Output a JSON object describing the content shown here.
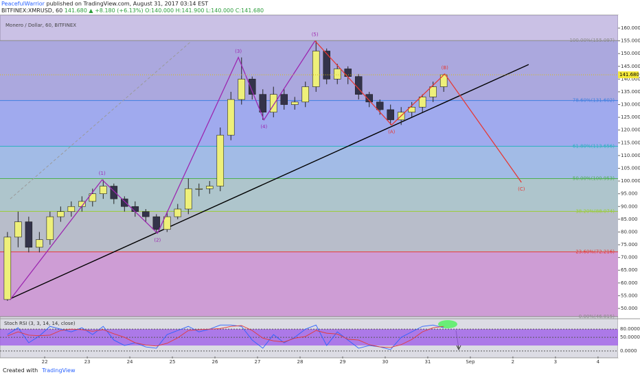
{
  "header": {
    "author": "PeacefulWarrior",
    "published": "published on TradingView.com, August 31, 2017 03:14 EST",
    "quote": [
      "BITFINEX:XMRUSD, 60",
      "141.680",
      "▲ +8.180 (+6.13%)",
      "O:140.000",
      "H:141.900",
      "L:140.000",
      "C:141.680"
    ]
  },
  "footer": {
    "created": "Created with",
    "brand": "TradingView"
  },
  "chart_data": {
    "type": "candlestick",
    "title": "Monero / Dollar, 60, BITFINEX",
    "up_color": "#eef07a",
    "down_color": "#33334a",
    "x": [
      21.125,
      21.375,
      21.625,
      21.875,
      22.125,
      22.375,
      22.625,
      22.875,
      23.125,
      23.375,
      23.625,
      23.875,
      24.125,
      24.375,
      24.625,
      24.875,
      25.125,
      25.375,
      25.625,
      25.875,
      26.125,
      26.375,
      26.625,
      26.875,
      27.125,
      27.375,
      27.625,
      27.875,
      28.125,
      28.375,
      28.625,
      28.875,
      29.125,
      29.375,
      29.625,
      29.875,
      30.125,
      30.375,
      30.625,
      30.875,
      31.125,
      31.375
    ],
    "open": [
      53.5,
      78,
      84,
      74,
      77,
      86,
      88,
      90,
      92,
      95,
      98,
      93,
      90,
      88,
      86,
      81,
      86,
      89,
      97,
      97,
      98,
      118,
      132,
      140,
      134,
      127,
      134,
      130,
      131,
      137,
      151,
      140,
      144,
      141,
      134,
      131,
      128,
      124,
      127,
      129,
      133,
      137
    ],
    "high": [
      80,
      88,
      86,
      80,
      88,
      90,
      92,
      94,
      97,
      100.5,
      99,
      94,
      92,
      89,
      87,
      88,
      91,
      101,
      99,
      100,
      121,
      135,
      148.5,
      141,
      136,
      137,
      136,
      133,
      139,
      155,
      152,
      146,
      145,
      142,
      135,
      132,
      130,
      129,
      131,
      134,
      139,
      142
    ],
    "low": [
      53,
      74,
      72,
      72,
      75,
      84,
      86,
      88,
      90,
      93,
      91,
      88,
      86,
      84,
      79.5,
      80,
      85,
      87,
      94,
      95,
      96,
      116,
      130,
      132,
      124,
      125,
      128,
      128,
      129,
      135,
      138,
      138,
      138,
      132,
      129,
      126,
      122,
      122,
      125,
      127,
      131,
      135
    ],
    "close": [
      78,
      84,
      74,
      77,
      86,
      88,
      90,
      92,
      95,
      98,
      93,
      90,
      88,
      86,
      81,
      86,
      89,
      97,
      97,
      98,
      118,
      132,
      140,
      134,
      127,
      134,
      130,
      131,
      137,
      151,
      140,
      144,
      141,
      134,
      131,
      128,
      124,
      127,
      129,
      133,
      137,
      141.68
    ],
    "xlim": [
      20.95,
      35.47
    ],
    "xticks": [
      22,
      23,
      24,
      25,
      26,
      27,
      28,
      29,
      30,
      31,
      {
        "value": 32,
        "label": "Sep"
      },
      {
        "value": 33,
        "label": "2"
      },
      {
        "value": 34,
        "label": "3"
      },
      {
        "value": 35,
        "label": "4"
      }
    ],
    "ylim": [
      46.77,
      162.96
    ],
    "yticks": [
      {
        "value": 160,
        "label": "160.000"
      },
      {
        "value": 155,
        "label": "155.000"
      },
      {
        "value": 150,
        "label": "150.000"
      },
      {
        "value": 145,
        "label": "145.000"
      },
      {
        "value": 140,
        "label": "140.000"
      },
      {
        "value": 135,
        "label": "135.000"
      },
      {
        "value": 130,
        "label": "130.000"
      },
      {
        "value": 125,
        "label": "125.000"
      },
      {
        "value": 120,
        "label": "120.000"
      },
      {
        "value": 115,
        "label": "115.000"
      },
      {
        "value": 110,
        "label": "110.000"
      },
      {
        "value": 105,
        "label": "105.000"
      },
      {
        "value": 100,
        "label": "100.000"
      },
      {
        "value": 95,
        "label": "95.000"
      },
      {
        "value": 90,
        "label": "90.000"
      },
      {
        "value": 85,
        "label": "85.000"
      },
      {
        "value": 80,
        "label": "80.000"
      },
      {
        "value": 75,
        "label": "75.000"
      },
      {
        "value": 70,
        "label": "70.000"
      },
      {
        "value": 65,
        "label": "65.000"
      },
      {
        "value": 60,
        "label": "60.000"
      },
      {
        "value": 55,
        "label": "55.000"
      },
      {
        "value": 50,
        "label": "50.000"
      }
    ],
    "last_price": {
      "value": 141.68,
      "label": "141.680"
    },
    "fib_levels": [
      {
        "value": 155.097,
        "label": "100.00%(155.097)"
      },
      {
        "value": 131.602,
        "label": "78.60%(131.602)"
      },
      {
        "value": 113.656,
        "label": "61.80%(113.656)"
      },
      {
        "value": 100.953,
        "label": "50.00%(100.953)"
      },
      {
        "value": 88.074,
        "label": "38.20%(88.074)"
      },
      {
        "value": 72.216,
        "label": "23.60%(72.216)"
      },
      {
        "value": 46.815,
        "label": "0.00%(46.815)"
      }
    ],
    "fib_line_colors": [
      "#8a8a8a",
      "#3f7fe0",
      "#2ab0c0",
      "#4caf50",
      "#9acd32",
      "#e53935",
      "#8a8a8a"
    ],
    "fib_band_colors": [
      "#b4bcdc",
      "#a6bef0",
      "#a8d4e6",
      "#b8e0c4",
      "#c4d6c2",
      "#e0aed0"
    ],
    "overlay_color": "rgba(140,100,230,0.22)",
    "wave_lines": [
      {
        "color": "#9c27b0",
        "points": [
          {
            "x": 21.19,
            "y": 53.5
          },
          {
            "x": 23.35,
            "y": 100.5,
            "label": "(1)"
          },
          {
            "x": 24.65,
            "y": 79.5,
            "label": "(2)"
          },
          {
            "x": 26.55,
            "y": 148.5,
            "label": "(3)"
          },
          {
            "x": 27.15,
            "y": 124,
            "label": "(4)"
          },
          {
            "x": 28.35,
            "y": 155,
            "label": "(5)"
          }
        ]
      },
      {
        "color": "#e53935",
        "points": [
          {
            "x": 28.35,
            "y": 155
          },
          {
            "x": 30.15,
            "y": 122,
            "label": "(A)"
          },
          {
            "x": 31.4,
            "y": 142,
            "label": "(B)"
          },
          {
            "x": 33.2,
            "y": 99.5,
            "label": "(C)"
          }
        ]
      }
    ],
    "trend_lines": [
      {
        "x": [
          21.19,
          33.37
        ],
        "y": [
          53.8,
          145.7
        ],
        "color": "#000000"
      },
      {
        "x": [
          21.19,
          25.42
        ],
        "y": [
          93,
          154.5
        ],
        "color": "#9a9a9a",
        "dashed": true
      }
    ],
    "indicator": {
      "title": "Stoch RSI (3, 3, 14, 14, close)",
      "ylim": [
        -20,
        118
      ],
      "band": [
        20,
        80
      ],
      "band_color": "#a060e8",
      "yticks": [
        {
          "value": 80,
          "label": "80.0000"
        },
        {
          "value": 50,
          "label": "50.0000"
        },
        {
          "value": 0,
          "label": "0.0000"
        }
      ],
      "series": [
        {
          "color": "#2962ff",
          "values": [
            60,
            85,
            30,
            55,
            90,
            80,
            70,
            85,
            60,
            90,
            40,
            20,
            30,
            15,
            10,
            60,
            75,
            90,
            70,
            80,
            95,
            95,
            90,
            40,
            10,
            60,
            30,
            50,
            80,
            95,
            20,
            70,
            40,
            10,
            20,
            15,
            5,
            50,
            70,
            90,
            95,
            85
          ]
        },
        {
          "color": "#e53935",
          "values": [
            55,
            70,
            58,
            56,
            58,
            75,
            80,
            78,
            72,
            78,
            63,
            50,
            30,
            22,
            18,
            28,
            48,
            75,
            78,
            80,
            82,
            90,
            93,
            75,
            47,
            37,
            33,
            47,
            53,
            75,
            65,
            62,
            43,
            40,
            23,
            15,
            13,
            23,
            42,
            70,
            85,
            90
          ]
        }
      ]
    }
  }
}
